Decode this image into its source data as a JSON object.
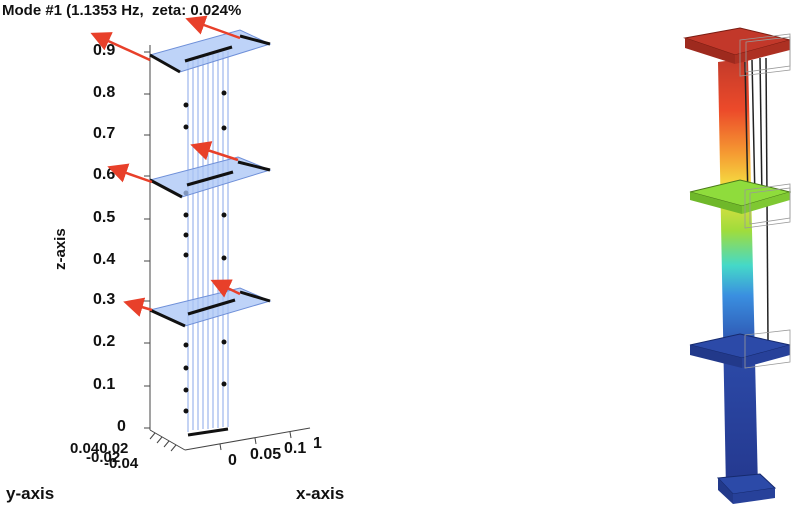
{
  "figure": {
    "title": "Mode #1 (1.1353 Hz,  zeta: 0.024%",
    "z_axis_label": "z-axis",
    "y_axis_label": "y-axis",
    "x_axis_label": "x-axis",
    "z_ticks": [
      "0",
      "0.1",
      "0.2",
      "0.3",
      "0.4",
      "0.5",
      "0.6",
      "0.7",
      "0.8",
      "0.9"
    ],
    "y_ticks_overlap": "0.040.02",
    "y_ticks_overlap2": "-0.02",
    "y_ticks_overlap3": "-0.04",
    "x_ticks": [
      "0",
      "0.05",
      "0.1"
    ],
    "x_tick_extra": "1",
    "floor_levels": [
      0.3,
      0.6,
      0.9
    ],
    "colors": {
      "plate": "#a8c4f5",
      "plate_edge": "#111111",
      "column": "#8aa7e8",
      "arrow": "#e8402a",
      "contour_top": "#c2382a",
      "contour_mid": "#8fdc3c",
      "contour_low": "#2c4aa8"
    }
  }
}
